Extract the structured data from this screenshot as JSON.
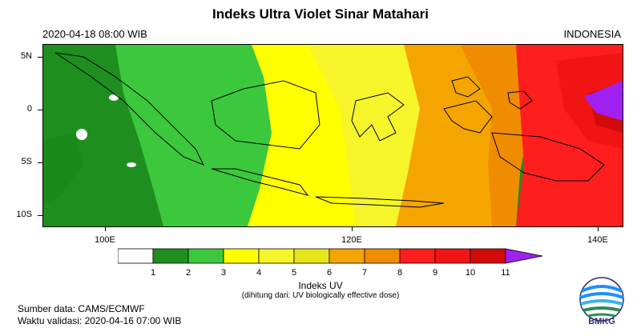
{
  "title": "Indeks Ultra Violet Sinar Matahari",
  "datetime": "2020-04-18  08:00 WIB",
  "region": "INDONESIA",
  "axes": {
    "lat_ticks": [
      {
        "label": "5N",
        "value": 5
      },
      {
        "label": "0",
        "value": 0
      },
      {
        "label": "5S",
        "value": -5
      },
      {
        "label": "10S",
        "value": -10
      }
    ],
    "lon_ticks": [
      {
        "label": "100E",
        "value": 100
      },
      {
        "label": "120E",
        "value": 120
      },
      {
        "label": "140E",
        "value": 140
      }
    ],
    "lon_range": [
      94.5,
      141.5
    ],
    "lat_range": [
      -11,
      6
    ]
  },
  "colorbar": {
    "title": "Indeks UV",
    "subtitle": "(dihitung dari: UV biologically effective dose)",
    "labels": [
      "1",
      "2",
      "3",
      "4",
      "5",
      "6",
      "7",
      "8",
      "9",
      "10",
      "11"
    ],
    "colors": [
      "#ffffff",
      "#1e8f1e",
      "#3cc83c",
      "#ffff00",
      "#f5f52a",
      "#e6e619",
      "#f5a500",
      "#f08c00",
      "#ff1e1e",
      "#f01414",
      "#d20a0a",
      "#a020f0"
    ]
  },
  "footer": {
    "source": "Sumber data: CAMS/ECMWF",
    "valid": "Waktu validasi: 2020-04-16 07:00 WIB"
  },
  "logo": {
    "text": "BMKG",
    "icon": "bmkg-logo-icon"
  }
}
